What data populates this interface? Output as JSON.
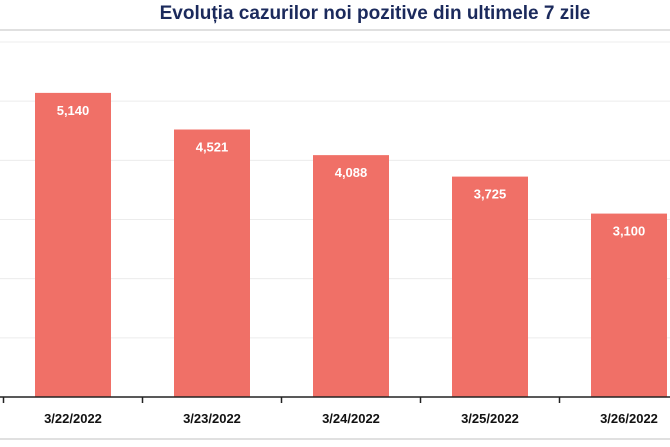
{
  "chart_data": {
    "type": "bar",
    "title": "Evoluția cazurilor noi pozitive din ultimele 7 zile",
    "categories": [
      "3/22/2022",
      "3/23/2022",
      "3/24/2022",
      "3/25/2022",
      "3/26/2022"
    ],
    "values": [
      5140,
      4521,
      4088,
      3725,
      3100
    ],
    "data_labels": [
      "5,140",
      "4,521",
      "4,088",
      "3,725",
      "3,100"
    ],
    "xlabel": "",
    "ylabel": "",
    "ylim": [
      0,
      6000
    ],
    "grid": true,
    "colors": {
      "bar": "#f07067",
      "title": "#1b2a5c",
      "grid": "#ececec",
      "axis": "#222222"
    }
  }
}
